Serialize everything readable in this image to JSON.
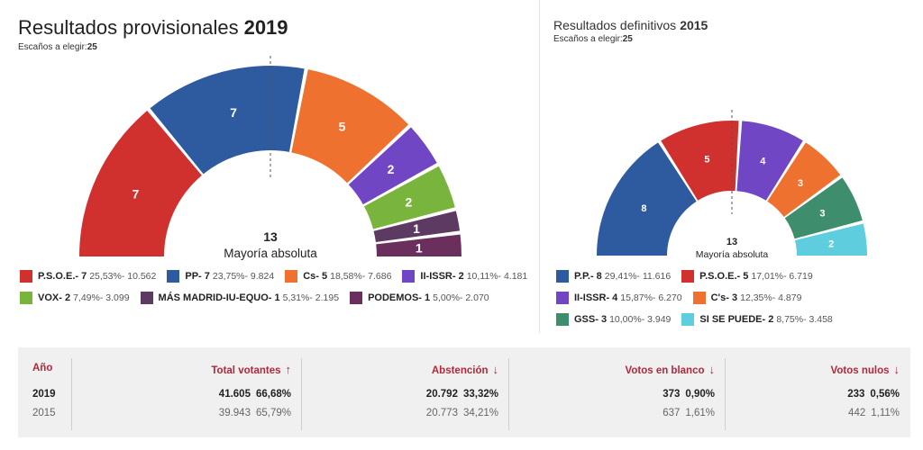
{
  "left": {
    "title": "Resultados provisionales",
    "year": "2019",
    "seats_label": "Escaños a elegir:",
    "seats_value": "25",
    "majority_number": "13",
    "majority_label": "Mayoría absoluta"
  },
  "right": {
    "title": "Resultados definitivos",
    "year": "2015",
    "seats_label": "Escaños a elegir:",
    "seats_value": "25",
    "majority_number": "13",
    "majority_label": "Mayoría absoluta"
  },
  "chart_data": [
    {
      "type": "pie",
      "title": "Resultados provisionales 2019",
      "series": [
        {
          "name": "P.S.O.E.",
          "seats": 7,
          "percent": "25,53%",
          "votes": "10.562",
          "color": "#d1312e",
          "legend": "P.S.O.E.- 7",
          "stats": "25,53%- 10.562"
        },
        {
          "name": "PP",
          "seats": 7,
          "percent": "23,75%",
          "votes": "9.824",
          "color": "#2e5aa0",
          "legend": "PP- 7",
          "stats": "23,75%- 9.824"
        },
        {
          "name": "Cs",
          "seats": 5,
          "percent": "18,58%",
          "votes": "7.686",
          "color": "#ee7130",
          "legend": "Cs- 5",
          "stats": "18,58%- 7.686"
        },
        {
          "name": "II-ISSR",
          "seats": 2,
          "percent": "10,11%",
          "votes": "4.181",
          "color": "#7046c4",
          "legend": "II-ISSR- 2",
          "stats": "10,11%- 4.181"
        },
        {
          "name": "VOX",
          "seats": 2,
          "percent": "7,49%",
          "votes": "3.099",
          "color": "#79b43d",
          "legend": "VOX- 2",
          "stats": "7,49%- 3.099"
        },
        {
          "name": "MÁS MADRID-IU-EQUO",
          "seats": 1,
          "percent": "5,31%",
          "votes": "2.195",
          "color": "#5d3a62",
          "legend": "MÁS MADRID-IU-EQUO- 1",
          "stats": "5,31%- 2.195"
        },
        {
          "name": "PODEMOS",
          "seats": 1,
          "percent": "5,00%",
          "votes": "2.070",
          "color": "#6a2f5c",
          "legend": "PODEMOS- 1",
          "stats": "5,00%- 2.070"
        }
      ]
    },
    {
      "type": "pie",
      "title": "Resultados definitivos 2015",
      "series": [
        {
          "name": "P.P.",
          "seats": 8,
          "percent": "29,41%",
          "votes": "11.616",
          "color": "#2e5aa0",
          "legend": "P.P.- 8",
          "stats": "29,41%- 11.616"
        },
        {
          "name": "P.S.O.E.",
          "seats": 5,
          "percent": "17,01%",
          "votes": "6.719",
          "color": "#d1312e",
          "legend": "P.S.O.E.- 5",
          "stats": "17,01%- 6.719"
        },
        {
          "name": "II-ISSR",
          "seats": 4,
          "percent": "15,87%",
          "votes": "6.270",
          "color": "#7046c4",
          "legend": "II-ISSR- 4",
          "stats": "15,87%- 6.270"
        },
        {
          "name": "C's",
          "seats": 3,
          "percent": "12,35%",
          "votes": "4.879",
          "color": "#ee7130",
          "legend": "C's- 3",
          "stats": "12,35%- 4.879"
        },
        {
          "name": "GSS",
          "seats": 3,
          "percent": "10,00%",
          "votes": "3.949",
          "color": "#3e8d6c",
          "legend": "GSS- 3",
          "stats": "10,00%- 3.949"
        },
        {
          "name": "SI SE PUEDE",
          "seats": 2,
          "percent": "8,75%",
          "votes": "3.458",
          "color": "#5ecddd",
          "legend": "SI SE PUEDE- 2",
          "stats": "8,75%- 3.458"
        }
      ]
    }
  ],
  "results": {
    "year_header": "Año",
    "columns": [
      {
        "header": "Total votantes",
        "arrow": "↑",
        "v2019": "41.605",
        "p2019": "66,68%",
        "v2015": "39.943",
        "p2015": "65,79%"
      },
      {
        "header": "Abstención",
        "arrow": "↓",
        "v2019": "20.792",
        "p2019": "33,32%",
        "v2015": "20.773",
        "p2015": "34,21%"
      },
      {
        "header": "Votos en blanco",
        "arrow": "↓",
        "v2019": "373",
        "p2019": "0,90%",
        "v2015": "637",
        "p2015": "1,61%"
      },
      {
        "header": "Votos nulos",
        "arrow": "↓",
        "v2019": "233",
        "p2019": "0,56%",
        "v2015": "442",
        "p2015": "1,11%"
      }
    ],
    "year_2019": "2019",
    "year_2015": "2015"
  }
}
